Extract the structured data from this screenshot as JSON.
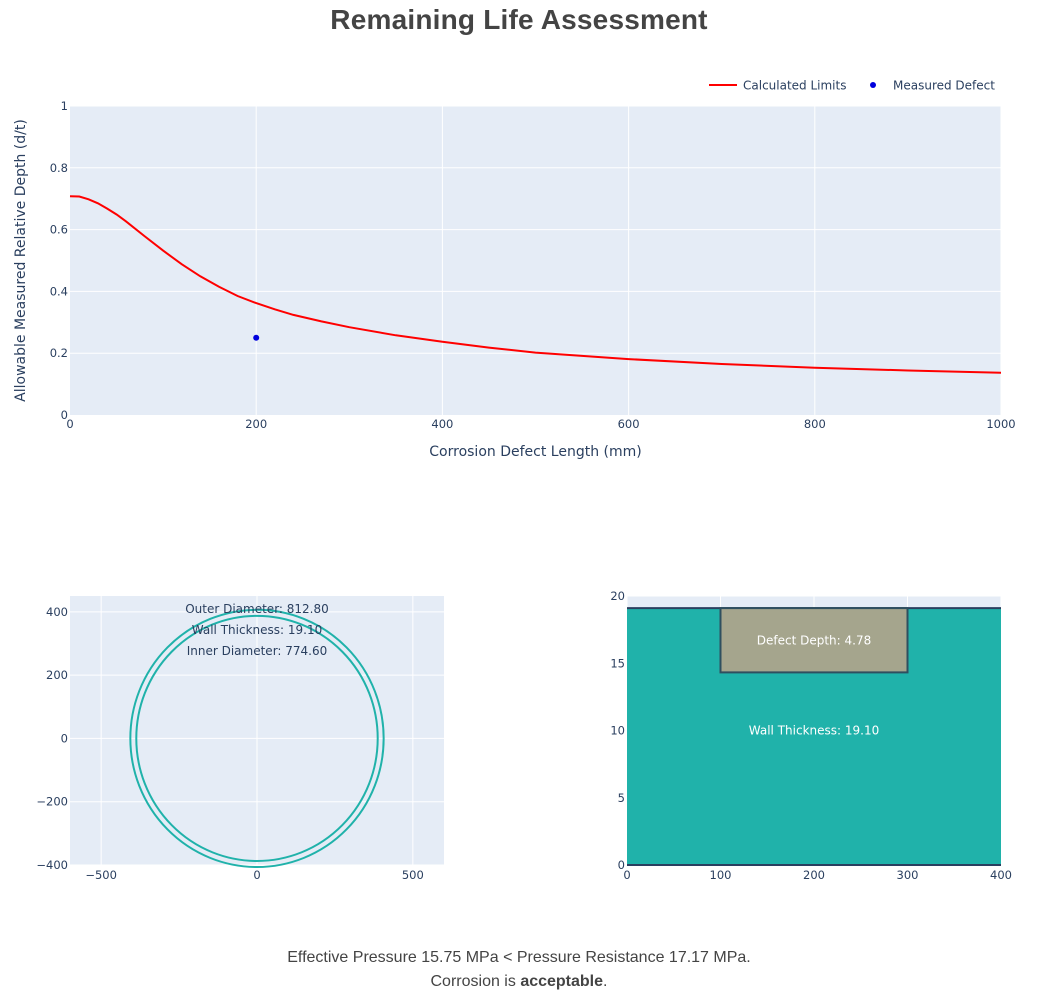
{
  "page": {
    "title": "Remaining Life Assessment",
    "summary_line1": "Effective Pressure 15.75 MPa < Pressure Resistance 17.17 MPa.",
    "summary_line2_prefix": "Corrosion is ",
    "summary_line2_bold": "acceptable",
    "summary_line2_suffix": "."
  },
  "chart_data": [
    {
      "type": "line",
      "xlabel": "Corrosion Defect Length (mm)",
      "ylabel": "Allowable Measured Relative Depth (d/t)",
      "xlim": [
        0,
        1000
      ],
      "ylim": [
        0,
        1
      ],
      "xticks": [
        0,
        200,
        400,
        600,
        800,
        1000
      ],
      "yticks": [
        0,
        0.2,
        0.4,
        0.6,
        0.8,
        1
      ],
      "xtick_labels": [
        "0",
        "200",
        "400",
        "600",
        "800",
        "1000"
      ],
      "ytick_labels": [
        "0",
        "0.2",
        "0.4",
        "0.6",
        "0.8",
        "1"
      ],
      "grid": true,
      "legend_position": "top-right",
      "series": [
        {
          "name": "Calculated Limits",
          "mode": "line",
          "color": "#ff0000",
          "x": [
            0,
            10,
            20,
            30,
            40,
            50,
            60,
            80,
            100,
            120,
            140,
            160,
            180,
            200,
            220,
            240,
            270,
            300,
            350,
            400,
            450,
            500,
            600,
            700,
            800,
            900,
            1000
          ],
          "y": [
            0.708,
            0.707,
            0.698,
            0.685,
            0.668,
            0.649,
            0.627,
            0.579,
            0.532,
            0.488,
            0.449,
            0.415,
            0.385,
            0.362,
            0.342,
            0.324,
            0.303,
            0.284,
            0.258,
            0.237,
            0.218,
            0.202,
            0.181,
            0.165,
            0.153,
            0.144,
            0.137
          ]
        },
        {
          "name": "Measured Defect",
          "mode": "markers",
          "color": "#0000dd",
          "x": [
            200
          ],
          "y": [
            0.25
          ]
        }
      ]
    },
    {
      "type": "scatter",
      "description_role": "pipe-cross-section",
      "xlim": [
        -600,
        600
      ],
      "ylim": [
        -400,
        450
      ],
      "xticks": [
        -500,
        0,
        500
      ],
      "yticks": [
        -400,
        -200,
        0,
        200,
        400
      ],
      "xtick_labels": [
        "−500",
        "0",
        "500"
      ],
      "ytick_labels": [
        "−400",
        "−200",
        "0",
        "200",
        "400"
      ],
      "outer_radius": 406.4,
      "inner_radius": 387.3,
      "color": "#20b2aa",
      "annotations": [
        "Outer Diameter: 812.80",
        "Wall Thickness: 19.10",
        "Inner Diameter: 774.60"
      ]
    },
    {
      "type": "area",
      "description_role": "wall-defect-section",
      "xlim": [
        0,
        400
      ],
      "ylim": [
        0,
        20
      ],
      "xticks": [
        0,
        100,
        200,
        300,
        400
      ],
      "yticks": [
        0,
        5,
        10,
        15,
        20
      ],
      "xtick_labels": [
        "0",
        "100",
        "200",
        "300",
        "400"
      ],
      "ytick_labels": [
        "0",
        "5",
        "10",
        "15",
        "20"
      ],
      "wall_thickness": 19.1,
      "defect_depth": 4.78,
      "defect_x": [
        100,
        300
      ],
      "wall_color": "#20b2aa",
      "defect_color": "#a5a58d",
      "wall_label": "Wall Thickness: 19.10",
      "defect_label": "Defect Depth: 4.78"
    }
  ]
}
